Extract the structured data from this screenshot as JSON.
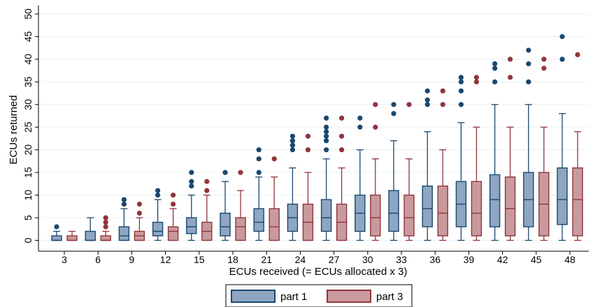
{
  "chart_data": {
    "type": "box",
    "xlabel": "ECUs received (= ECUs allocated x 3)",
    "ylabel": "ECUs returned",
    "categories": [
      3,
      6,
      9,
      12,
      15,
      18,
      21,
      24,
      27,
      30,
      33,
      36,
      39,
      42,
      45,
      48
    ],
    "ylim": [
      0,
      50
    ],
    "yticks": [
      0,
      5,
      10,
      15,
      20,
      25,
      30,
      35,
      40,
      45,
      50
    ],
    "grid": true,
    "legend": {
      "position": "bottom",
      "entries": [
        "part 1",
        "part 3"
      ]
    },
    "series": [
      {
        "name": "part 1",
        "color": "#8ea6c1",
        "edge_color": "#1a476f",
        "boxes": [
          {
            "x": 3,
            "min": 0,
            "q1": 0,
            "median": 0,
            "q3": 1,
            "max": 2,
            "outliers": [
              3
            ]
          },
          {
            "x": 6,
            "min": 0,
            "q1": 0,
            "median": 0,
            "q3": 2,
            "max": 5,
            "outliers": []
          },
          {
            "x": 9,
            "min": 0,
            "q1": 0,
            "median": 1,
            "q3": 3,
            "max": 7,
            "outliers": [
              8,
              9
            ]
          },
          {
            "x": 12,
            "min": 0,
            "q1": 1,
            "median": 2,
            "q3": 4,
            "max": 9,
            "outliers": [
              10,
              11
            ]
          },
          {
            "x": 15,
            "min": 0,
            "q1": 1.5,
            "median": 3,
            "q3": 5,
            "max": 10,
            "outliers": [
              12,
              13,
              15
            ]
          },
          {
            "x": 18,
            "min": 0,
            "q1": 1,
            "median": 3,
            "q3": 6,
            "max": 13,
            "outliers": [
              15
            ]
          },
          {
            "x": 21,
            "min": 0,
            "q1": 2,
            "median": 4,
            "q3": 7,
            "max": 14,
            "outliers": [
              15,
              18,
              20
            ]
          },
          {
            "x": 24,
            "min": 0,
            "q1": 2,
            "median": 5,
            "q3": 8,
            "max": 16,
            "outliers": [
              20,
              21,
              22,
              23
            ]
          },
          {
            "x": 27,
            "min": 0,
            "q1": 2,
            "median": 5,
            "q3": 9,
            "max": 18,
            "outliers": [
              20,
              22,
              23,
              24,
              25,
              27
            ]
          },
          {
            "x": 30,
            "min": 0,
            "q1": 2,
            "median": 6,
            "q3": 10,
            "max": 20,
            "outliers": [
              25,
              27
            ]
          },
          {
            "x": 33,
            "min": 0,
            "q1": 2,
            "median": 6,
            "q3": 11,
            "max": 22,
            "outliers": [
              28,
              30
            ]
          },
          {
            "x": 36,
            "min": 0,
            "q1": 3,
            "median": 7,
            "q3": 12,
            "max": 24,
            "outliers": [
              30,
              31,
              33
            ]
          },
          {
            "x": 39,
            "min": 0,
            "q1": 3,
            "median": 8,
            "q3": 13,
            "max": 26,
            "outliers": [
              30,
              33,
              35,
              36
            ]
          },
          {
            "x": 42,
            "min": 0,
            "q1": 3,
            "median": 9,
            "q3": 14.5,
            "max": 30,
            "outliers": [
              35,
              38,
              39
            ]
          },
          {
            "x": 45,
            "min": 0,
            "q1": 3,
            "median": 9,
            "q3": 15,
            "max": 30,
            "outliers": [
              35,
              39,
              42
            ]
          },
          {
            "x": 48,
            "min": 0,
            "q1": 3.5,
            "median": 9,
            "q3": 16,
            "max": 28,
            "outliers": [
              40,
              45
            ]
          }
        ]
      },
      {
        "name": "part 3",
        "color": "#c99a9d",
        "edge_color": "#90353b",
        "boxes": [
          {
            "x": 3,
            "min": 0,
            "q1": 0,
            "median": 0,
            "q3": 1,
            "max": 2,
            "outliers": []
          },
          {
            "x": 6,
            "min": 0,
            "q1": 0,
            "median": 0,
            "q3": 1,
            "max": 2,
            "outliers": [
              3,
              4,
              5
            ]
          },
          {
            "x": 9,
            "min": 0,
            "q1": 0,
            "median": 1,
            "q3": 2,
            "max": 5,
            "outliers": [
              6,
              8
            ]
          },
          {
            "x": 12,
            "min": 0,
            "q1": 0,
            "median": 2,
            "q3": 3,
            "max": 7,
            "outliers": [
              8,
              10
            ]
          },
          {
            "x": 15,
            "min": 0,
            "q1": 0,
            "median": 2,
            "q3": 4,
            "max": 10,
            "outliers": [
              11,
              13
            ]
          },
          {
            "x": 18,
            "min": 0,
            "q1": 0,
            "median": 3,
            "q3": 5,
            "max": 11,
            "outliers": [
              15
            ]
          },
          {
            "x": 21,
            "min": 0,
            "q1": 0,
            "median": 3,
            "q3": 7,
            "max": 14,
            "outliers": [
              18
            ]
          },
          {
            "x": 24,
            "min": 0,
            "q1": 0,
            "median": 4,
            "q3": 8,
            "max": 15,
            "outliers": [
              20,
              23
            ]
          },
          {
            "x": 27,
            "min": 0,
            "q1": 0,
            "median": 4,
            "q3": 8,
            "max": 16,
            "outliers": [
              20,
              23,
              27
            ]
          },
          {
            "x": 30,
            "min": 0,
            "q1": 1,
            "median": 5,
            "q3": 10,
            "max": 18,
            "outliers": [
              25,
              30
            ]
          },
          {
            "x": 33,
            "min": 0,
            "q1": 1,
            "median": 5,
            "q3": 10,
            "max": 18,
            "outliers": [
              30
            ]
          },
          {
            "x": 36,
            "min": 0,
            "q1": 1,
            "median": 6,
            "q3": 12,
            "max": 20,
            "outliers": [
              30,
              33
            ]
          },
          {
            "x": 39,
            "min": 0,
            "q1": 1,
            "median": 6,
            "q3": 13,
            "max": 25,
            "outliers": [
              35,
              36
            ]
          },
          {
            "x": 42,
            "min": 0,
            "q1": 1,
            "median": 7,
            "q3": 14,
            "max": 25,
            "outliers": [
              36,
              40
            ]
          },
          {
            "x": 45,
            "min": 0,
            "q1": 1,
            "median": 8,
            "q3": 15,
            "max": 25,
            "outliers": [
              38,
              40
            ]
          },
          {
            "x": 48,
            "min": 0,
            "q1": 1,
            "median": 9,
            "q3": 16,
            "max": 24,
            "outliers": [
              41
            ]
          }
        ]
      }
    ]
  }
}
